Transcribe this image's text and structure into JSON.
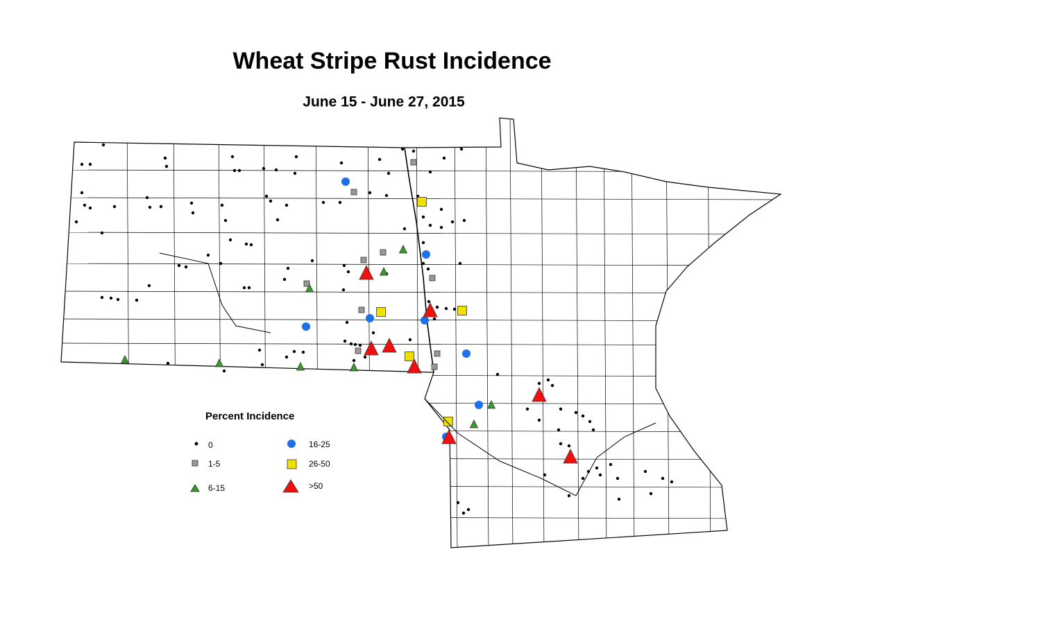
{
  "title": "Wheat Stripe Rust Incidence",
  "subtitle": "June 15 - June 27, 2015",
  "legend": {
    "title": "Percent Incidence",
    "items": [
      "0",
      "1-5",
      "6-15",
      "16-25",
      "26-50",
      ">50"
    ]
  }
}
